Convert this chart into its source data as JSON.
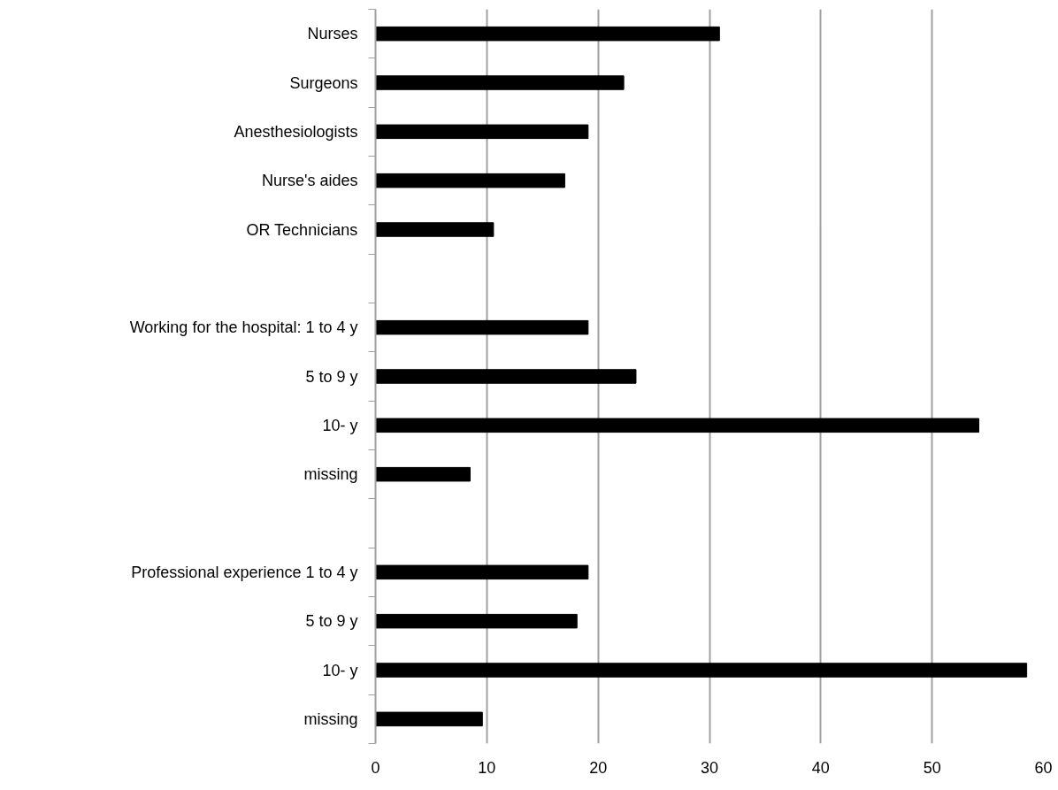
{
  "chart_data": {
    "type": "bar",
    "orientation": "horizontal",
    "categories": [
      "Nurses",
      "Surgeons",
      "Anesthesiologists",
      "Nurse's aides",
      "OR Technicians",
      null,
      "Working for the hospital: 1 to 4 y",
      "5 to 9 y",
      "10- y",
      "missing",
      null,
      "Professional experience 1 to 4 y",
      "5 to 9 y",
      "10- y",
      "missing"
    ],
    "values": [
      30.9,
      22.3,
      19.1,
      17.0,
      10.6,
      null,
      19.1,
      23.4,
      54.2,
      8.5,
      null,
      19.1,
      18.1,
      58.5,
      9.6
    ],
    "color": "#000000",
    "xlim": [
      0,
      60
    ],
    "xticks": [
      0,
      10,
      20,
      30,
      40,
      50,
      60
    ],
    "grid": "x"
  }
}
